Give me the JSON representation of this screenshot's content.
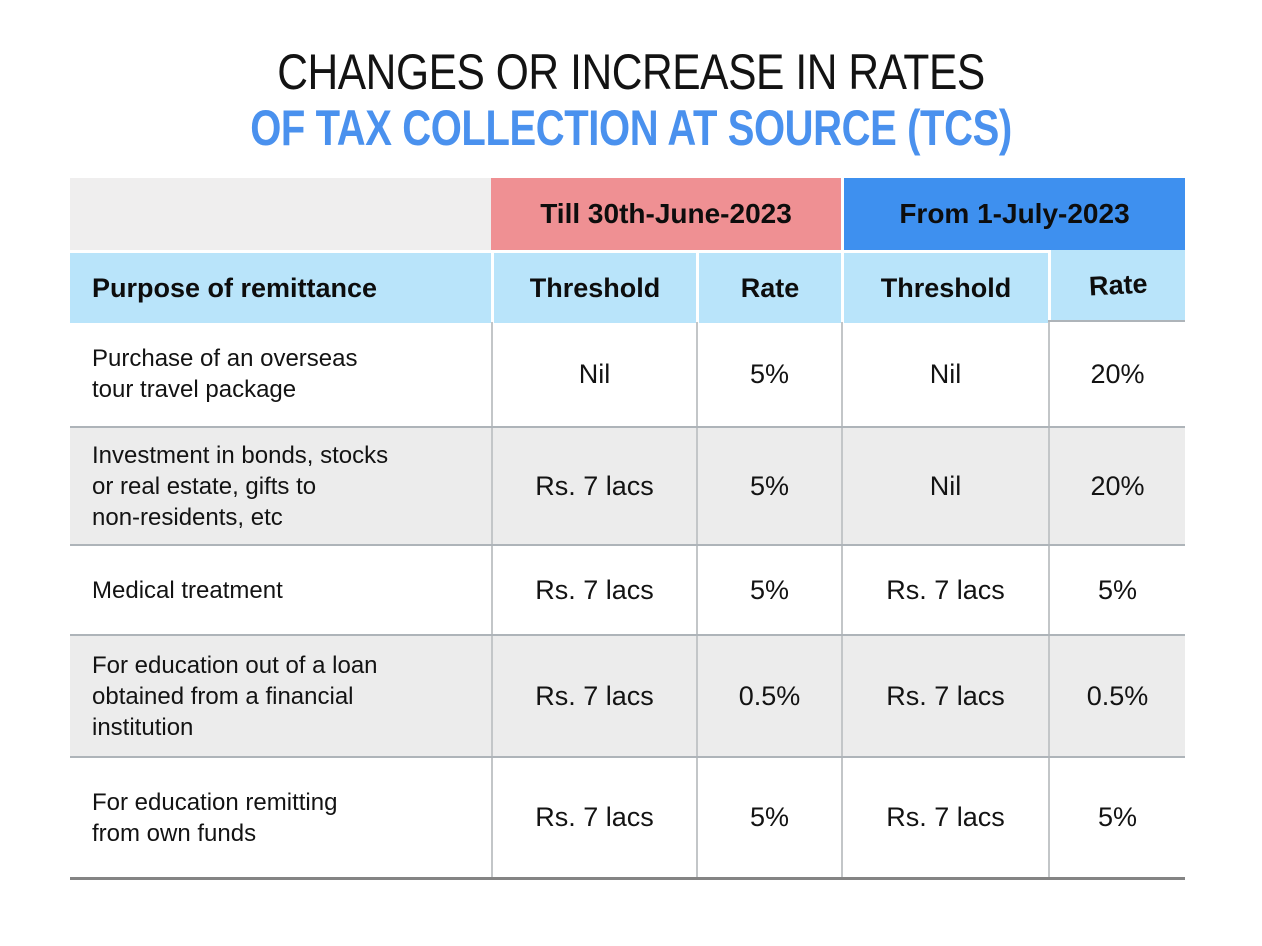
{
  "title": {
    "line1": "CHANGES OR INCREASE IN RATES",
    "line2": "OF TAX COLLECTION AT SOURCE (TCS)"
  },
  "table": {
    "period_headers": {
      "till": "Till 30th-June-2023",
      "from": "From 1-July-2023"
    },
    "column_headers": {
      "purpose": "Purpose of remittance",
      "till_threshold": "Threshold",
      "till_rate": "Rate",
      "from_threshold": "Threshold",
      "from_rate": "Rate"
    },
    "rows": [
      {
        "purpose": "Purchase of an overseas\ntour travel package",
        "till_threshold": "Nil",
        "till_rate": "5%",
        "from_threshold": "Nil",
        "from_rate": "20%"
      },
      {
        "purpose": "Investment in bonds, stocks\nor real estate, gifts to\nnon-residents, etc",
        "till_threshold": "Rs. 7 lacs",
        "till_rate": "5%",
        "from_threshold": "Nil",
        "from_rate": "20%"
      },
      {
        "purpose": "Medical treatment",
        "till_threshold": "Rs. 7 lacs",
        "till_rate": "5%",
        "from_threshold": "Rs. 7 lacs",
        "from_rate": "5%"
      },
      {
        "purpose": "For education out of a loan\nobtained from a financial\ninstitution",
        "till_threshold": "Rs. 7 lacs",
        "till_rate": "0.5%",
        "from_threshold": "Rs. 7 lacs",
        "from_rate": "0.5%"
      },
      {
        "purpose": "For education remitting\nfrom own funds",
        "till_threshold": "Rs. 7 lacs",
        "till_rate": "5%",
        "from_threshold": "Rs. 7 lacs",
        "from_rate": "5%"
      }
    ]
  },
  "colors": {
    "title_accent": "#4a91ee",
    "till_header_bg": "#ef9093",
    "from_header_bg": "#3e90ef",
    "subheader_bg": "#b9e4fa",
    "alt_row_bg": "#ececec",
    "empty_cell_bg": "#efeeee",
    "text": "#131313"
  },
  "chart_data": {
    "type": "table",
    "title": "CHANGES OR INCREASE IN RATES OF TAX COLLECTION AT SOURCE (TCS)",
    "column_groups": [
      "",
      "Till 30th-June-2023",
      "Till 30th-June-2023",
      "From 1-July-2023",
      "From 1-July-2023"
    ],
    "columns": [
      "Purpose of remittance",
      "Threshold",
      "Rate",
      "Threshold",
      "Rate"
    ],
    "rows": [
      [
        "Purchase of an overseas tour travel package",
        "Nil",
        "5%",
        "Nil",
        "20%"
      ],
      [
        "Investment in bonds, stocks or real estate, gifts to non-residents, etc",
        "Rs. 7 lacs",
        "5%",
        "Nil",
        "20%"
      ],
      [
        "Medical treatment",
        "Rs. 7 lacs",
        "5%",
        "Rs. 7 lacs",
        "5%"
      ],
      [
        "For education out of a loan obtained from a financial institution",
        "Rs. 7 lacs",
        "0.5%",
        "Rs. 7 lacs",
        "0.5%"
      ],
      [
        "For education remitting from own funds",
        "Rs. 7 lacs",
        "5%",
        "Rs. 7 lacs",
        "5%"
      ]
    ],
    "legend_position": "none",
    "grid": true
  }
}
